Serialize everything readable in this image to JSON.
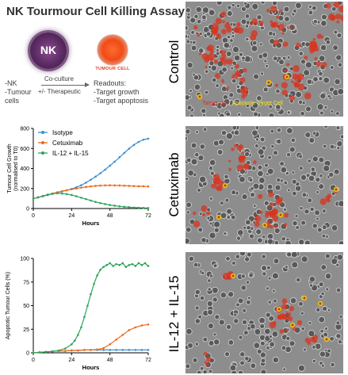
{
  "title": "NK Tourmour Cell Killing Assay",
  "illustration": {
    "nk_label": "NK",
    "tumour_label": "TUMOUR CELL",
    "inputs": [
      "-NK",
      "-Tumour",
      "cells"
    ],
    "arrow_top": "Co-culture",
    "arrow_bottom": "+/- Therapeutic",
    "readouts_title": "Readouts:",
    "readouts": [
      "-Target growth",
      "-Target apoptosis"
    ]
  },
  "panels": [
    {
      "label": "Control"
    },
    {
      "label": "Cetuximab"
    },
    {
      "label": "IL-12 + IL-15"
    }
  ],
  "overlay_legend": {
    "target": "Target cell",
    "separator": " / ",
    "apoptotic": "Apoptotic Target Cell",
    "target_color": "#e5271c",
    "apoptotic_color": "#f2e21b"
  },
  "colors": {
    "isotype": "#3d8fd1",
    "cetuximab": "#ee6a1a",
    "il": "#2ea35a"
  },
  "chart_data": [
    {
      "type": "line",
      "ylabel": "Tumour Cell Growth (normalised to T0)",
      "xlabel": "Hours",
      "xlim": [
        0,
        72
      ],
      "ylim": [
        0,
        800
      ],
      "xticks": [
        0,
        24,
        48,
        72
      ],
      "yticks": [
        0,
        200,
        400,
        600,
        800
      ],
      "legend": "top-left",
      "series": [
        {
          "name": "Isotype",
          "color": "#3d8fd1",
          "x": [
            0,
            3,
            6,
            9,
            12,
            15,
            18,
            21,
            24,
            27,
            30,
            33,
            36,
            39,
            42,
            45,
            48,
            51,
            54,
            57,
            60,
            63,
            66,
            69,
            72
          ],
          "y": [
            100,
            110,
            122,
            134,
            146,
            158,
            170,
            182,
            196,
            212,
            232,
            258,
            288,
            318,
            352,
            388,
            428,
            468,
            512,
            555,
            598,
            635,
            665,
            688,
            698
          ]
        },
        {
          "name": "Cetuximab",
          "color": "#ee6a1a",
          "x": [
            0,
            3,
            6,
            9,
            12,
            15,
            18,
            21,
            24,
            27,
            30,
            33,
            36,
            39,
            42,
            45,
            48,
            51,
            54,
            57,
            60,
            63,
            66,
            69,
            72
          ],
          "y": [
            100,
            112,
            125,
            138,
            150,
            162,
            173,
            183,
            192,
            200,
            208,
            215,
            221,
            226,
            229,
            231,
            232,
            231,
            230,
            228,
            226,
            224,
            222,
            222,
            220
          ]
        },
        {
          "name": "IL-12 + IL-15",
          "color": "#2ea35a",
          "x": [
            0,
            3,
            6,
            9,
            12,
            15,
            18,
            21,
            24,
            27,
            30,
            33,
            36,
            39,
            42,
            45,
            48,
            51,
            54,
            57,
            60,
            63,
            66,
            69,
            72
          ],
          "y": [
            100,
            112,
            125,
            138,
            148,
            152,
            150,
            144,
            135,
            122,
            108,
            94,
            80,
            66,
            54,
            44,
            35,
            28,
            22,
            17,
            13,
            10,
            8,
            6,
            5
          ]
        }
      ]
    },
    {
      "type": "line",
      "ylabel": "Apoptotic Tumour Cells (%)",
      "xlabel": "Hours",
      "xlim": [
        0,
        72
      ],
      "ylim": [
        0,
        100
      ],
      "xticks": [
        0,
        24,
        48,
        72
      ],
      "yticks": [
        0,
        25,
        50,
        75,
        100
      ],
      "series": [
        {
          "name": "Isotype",
          "color": "#3d8fd1",
          "x": [
            0,
            4,
            8,
            12,
            16,
            20,
            24,
            28,
            32,
            36,
            40,
            44,
            48,
            52,
            56,
            60,
            64,
            68,
            72
          ],
          "y": [
            0,
            0.5,
            1,
            1.5,
            2,
            2,
            2.5,
            2.5,
            3,
            3,
            3,
            3,
            3,
            3,
            3,
            3,
            3,
            3,
            3
          ]
        },
        {
          "name": "Cetuximab",
          "color": "#ee6a1a",
          "x": [
            0,
            4,
            8,
            12,
            16,
            20,
            24,
            28,
            32,
            36,
            40,
            44,
            48,
            52,
            56,
            60,
            64,
            68,
            72
          ],
          "y": [
            0,
            0.5,
            1,
            1.5,
            2,
            2,
            2.5,
            2.5,
            3,
            3,
            3.5,
            5,
            9,
            14,
            19,
            24,
            27,
            29,
            30
          ]
        },
        {
          "name": "IL-12 + IL-15",
          "color": "#2ea35a",
          "x": [
            0,
            4,
            8,
            12,
            16,
            20,
            24,
            26,
            28,
            30,
            32,
            34,
            36,
            38,
            40,
            42,
            44,
            46,
            48,
            50,
            52,
            54,
            56,
            58,
            60,
            62,
            64,
            66,
            68,
            70,
            72
          ],
          "y": [
            0,
            0.5,
            1,
            1.5,
            2.5,
            4.5,
            9,
            13,
            19,
            27,
            38,
            50,
            62,
            73,
            82,
            88,
            91,
            93,
            95,
            92,
            94,
            93,
            95,
            91,
            93,
            94,
            92,
            95,
            93,
            95,
            92
          ]
        }
      ]
    }
  ]
}
